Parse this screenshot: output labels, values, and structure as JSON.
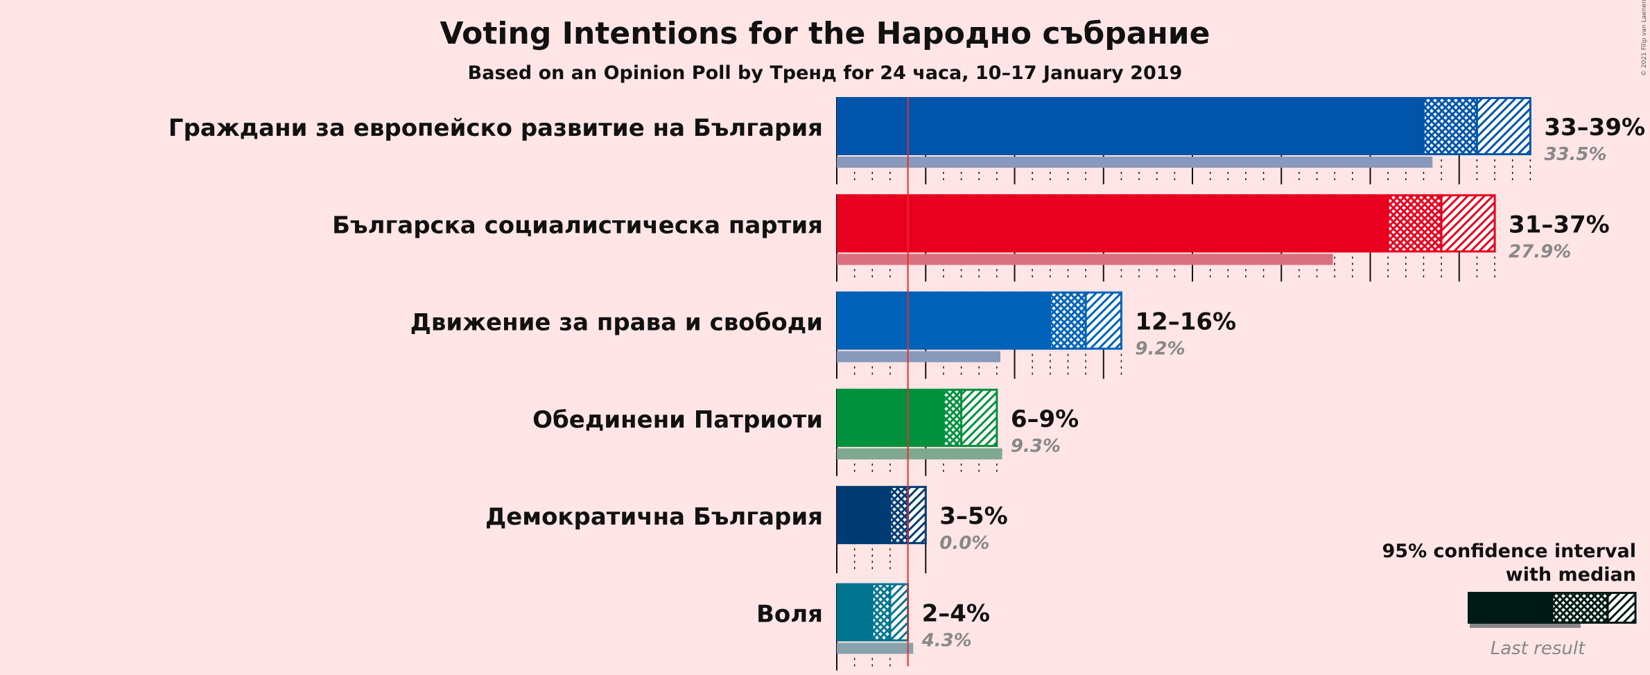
{
  "chart_data": {
    "type": "bar",
    "title": "Voting Intentions for the Народно събрание",
    "subtitle": "Based on an Opinion Poll by Тренд for 24 часа, 10–17 January 2019",
    "copyright": "© 2021 Filip van Laenen",
    "threshold": 4,
    "legend": {
      "line1": "95% confidence interval",
      "line2": "with median",
      "last_result": "Last result",
      "color": "#001A14"
    },
    "series": [
      {
        "name": "Граждани за европейско развитие на България",
        "color": "#0055AA",
        "last_color": "#8899BB",
        "low": 33,
        "median": 36,
        "high": 39,
        "last": 33.5,
        "range_label": "33–39%",
        "last_label": "33.5%"
      },
      {
        "name": "Българска социалистическа партия",
        "color": "#E8001E",
        "last_color": "#D9707F",
        "low": 31,
        "median": 34,
        "high": 37,
        "last": 27.9,
        "range_label": "31–37%",
        "last_label": "27.9%"
      },
      {
        "name": "Движение за права и свободи",
        "color": "#0062B8",
        "last_color": "#8899BB",
        "low": 12,
        "median": 14,
        "high": 16,
        "last": 9.2,
        "range_label": "12–16%",
        "last_label": "9.2%"
      },
      {
        "name": "Обединени Патриоти",
        "color": "#00913C",
        "last_color": "#7FA890",
        "low": 6,
        "median": 7,
        "high": 9,
        "last": 9.3,
        "range_label": "6–9%",
        "last_label": "9.3%"
      },
      {
        "name": "Демократична България",
        "color": "#003B73",
        "last_color": "#8899AA",
        "low": 3,
        "median": 4,
        "high": 5,
        "last": 0.0,
        "range_label": "3–5%",
        "last_label": "0.0%"
      },
      {
        "name": "Воля",
        "color": "#007590",
        "last_color": "#88A3AD",
        "low": 2,
        "median": 3,
        "high": 4,
        "last": 4.3,
        "range_label": "2–4%",
        "last_label": "4.3%"
      }
    ]
  }
}
